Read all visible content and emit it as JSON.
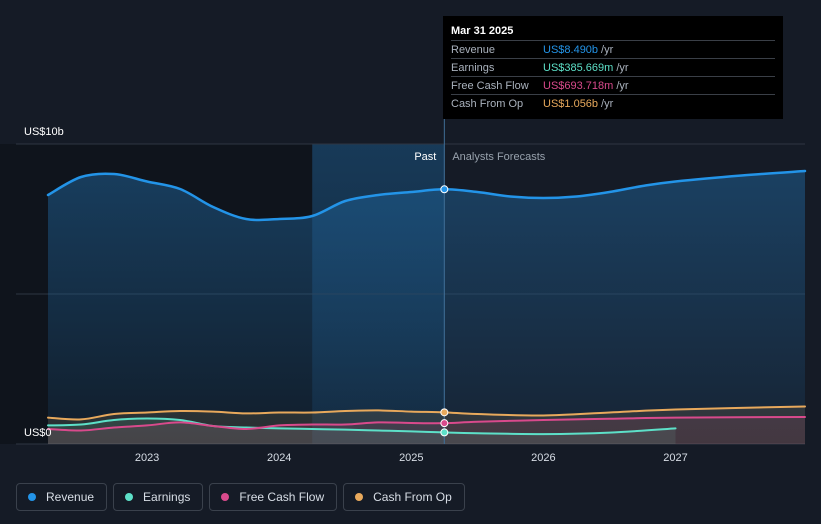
{
  "chart_data": {
    "type": "line",
    "y_max_label": "US$10b",
    "y_min_label": "US$0",
    "y_range": [
      0,
      10
    ],
    "x_range": [
      2022.25,
      2027.98
    ],
    "x_ticks": [
      {
        "value": 2023,
        "label": "2023"
      },
      {
        "value": 2024,
        "label": "2024"
      },
      {
        "value": 2025,
        "label": "2025"
      },
      {
        "value": 2026,
        "label": "2026"
      },
      {
        "value": 2027,
        "label": "2027"
      }
    ],
    "past_label": "Past",
    "forecast_label": "Analysts Forecasts",
    "divider_x": 2025.25,
    "highlight_start": 2024.25,
    "grid": true,
    "series": [
      {
        "name": "Revenue",
        "color": "#2394e8",
        "area": true,
        "x": [
          2022.25,
          2022.5,
          2022.75,
          2023.0,
          2023.25,
          2023.5,
          2023.75,
          2024.0,
          2024.25,
          2024.5,
          2024.75,
          2025.0,
          2025.25,
          2025.5,
          2025.75,
          2026.0,
          2026.25,
          2026.5,
          2026.75,
          2027.0,
          2027.5,
          2027.98
        ],
        "y": [
          8.3,
          8.9,
          9.0,
          8.75,
          8.5,
          7.9,
          7.5,
          7.5,
          7.6,
          8.1,
          8.3,
          8.4,
          8.49,
          8.4,
          8.25,
          8.2,
          8.25,
          8.4,
          8.6,
          8.75,
          8.95,
          9.1
        ]
      },
      {
        "name": "Earnings",
        "color": "#5de0c8",
        "area": true,
        "x": [
          2022.25,
          2022.5,
          2022.75,
          2023.0,
          2023.25,
          2023.5,
          2023.75,
          2024.0,
          2024.25,
          2024.5,
          2024.75,
          2025.0,
          2025.25,
          2025.5,
          2026.0,
          2026.5,
          2027.0
        ],
        "y": [
          0.62,
          0.65,
          0.8,
          0.85,
          0.8,
          0.6,
          0.55,
          0.52,
          0.5,
          0.48,
          0.45,
          0.42,
          0.386,
          0.36,
          0.33,
          0.38,
          0.52
        ]
      },
      {
        "name": "Free Cash Flow",
        "color": "#d94a8c",
        "area": true,
        "x": [
          2022.25,
          2022.5,
          2022.75,
          2023.0,
          2023.25,
          2023.5,
          2023.75,
          2024.0,
          2024.25,
          2024.5,
          2024.75,
          2025.0,
          2025.25,
          2025.5,
          2026.0,
          2026.5,
          2027.0,
          2027.98
        ],
        "y": [
          0.5,
          0.45,
          0.55,
          0.62,
          0.72,
          0.6,
          0.5,
          0.62,
          0.65,
          0.65,
          0.72,
          0.7,
          0.694,
          0.74,
          0.8,
          0.84,
          0.88,
          0.9
        ]
      },
      {
        "name": "Cash From Op",
        "color": "#e8a95c",
        "area": true,
        "x": [
          2022.25,
          2022.5,
          2022.75,
          2023.0,
          2023.25,
          2023.5,
          2023.75,
          2024.0,
          2024.25,
          2024.5,
          2024.75,
          2025.0,
          2025.25,
          2025.5,
          2026.0,
          2026.5,
          2027.0,
          2027.98
        ],
        "y": [
          0.88,
          0.82,
          1.0,
          1.05,
          1.1,
          1.08,
          1.02,
          1.05,
          1.05,
          1.1,
          1.12,
          1.08,
          1.056,
          1.0,
          0.95,
          1.05,
          1.15,
          1.25
        ]
      }
    ]
  },
  "tooltip": {
    "date": "Mar 31 2025",
    "rows": [
      {
        "label": "Revenue",
        "value": "US$8.490b",
        "unit": "/yr",
        "color": "#2394e8"
      },
      {
        "label": "Earnings",
        "value": "US$385.669m",
        "unit": "/yr",
        "color": "#5de0c8"
      },
      {
        "label": "Free Cash Flow",
        "value": "US$693.718m",
        "unit": "/yr",
        "color": "#d94a8c"
      },
      {
        "label": "Cash From Op",
        "value": "US$1.056b",
        "unit": "/yr",
        "color": "#e8a95c"
      }
    ]
  },
  "legend": [
    {
      "label": "Revenue",
      "color": "#2394e8"
    },
    {
      "label": "Earnings",
      "color": "#5de0c8"
    },
    {
      "label": "Free Cash Flow",
      "color": "#d94a8c"
    },
    {
      "label": "Cash From Op",
      "color": "#e8a95c"
    }
  ]
}
